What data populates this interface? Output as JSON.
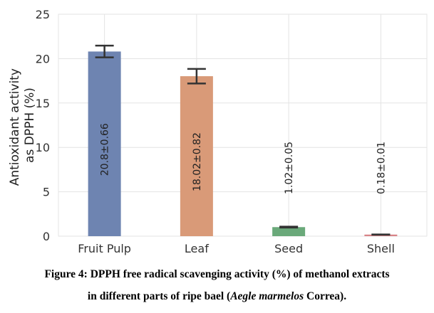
{
  "chart_data": {
    "type": "bar",
    "categories": [
      "Fruit Pulp",
      "Leaf",
      "Seed",
      "Shell"
    ],
    "values": [
      20.8,
      18.02,
      1.02,
      0.18
    ],
    "errors": [
      0.66,
      0.82,
      0.05,
      0.01
    ],
    "data_labels": [
      "20.8±0.66",
      "18.02±0.82",
      "1.02±0.05",
      "0.18±0.01"
    ],
    "colors": [
      "#6e84b1",
      "#d99a78",
      "#6aa97a",
      "#d88488"
    ],
    "ylabel_lines": [
      "Antioxidant activity",
      "as DPPH (%)"
    ],
    "ylim": [
      0,
      25
    ],
    "yticks": [
      0,
      5,
      10,
      15,
      20,
      25
    ],
    "grid": true
  },
  "caption": {
    "line1": "Figure 4: DPPH free radical scavenging activity (%) of methanol extracts",
    "line2_pre": "in different parts of ripe bael (",
    "line2_italic": "Aegle marmelos",
    "line2_post": " Correa)."
  }
}
